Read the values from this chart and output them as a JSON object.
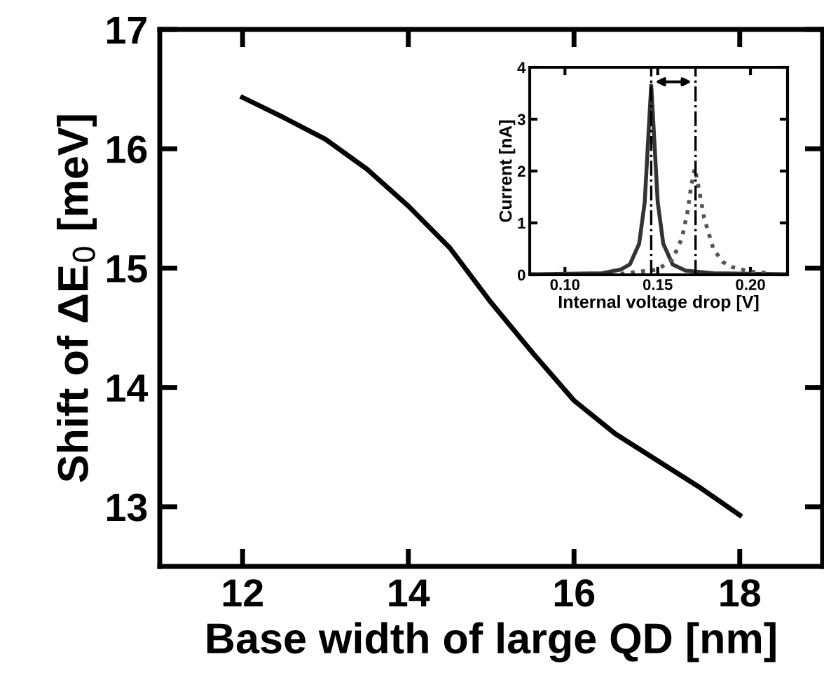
{
  "chart_data": [
    {
      "type": "line",
      "xlabel": "Base width of large QD [nm]",
      "ylabel": "Shift of ΔE$_{0}$ [meV]",
      "xlim": [
        11,
        19
      ],
      "xticks": [
        12,
        14,
        16,
        18
      ],
      "ylim": [
        12.5,
        17
      ],
      "yticks": [
        13,
        14,
        15,
        16,
        17
      ],
      "grid": false,
      "legend": false,
      "marker": "none",
      "series": [
        {
          "color": "#000000",
          "line_style": "solid",
          "x": [
            12,
            12.5,
            13,
            13.5,
            14,
            14.5,
            15,
            15.5,
            16,
            16.5,
            17,
            17.5,
            18
          ],
          "values": [
            16.43,
            16.26,
            16.08,
            15.83,
            15.52,
            15.17,
            14.71,
            14.29,
            13.89,
            13.61,
            13.39,
            13.17,
            12.93
          ]
        }
      ]
    },
    {
      "type": "line",
      "xlabel": "Internal voltage drop [V]",
      "ylabel": "Current [nA]",
      "xlim": [
        0.081,
        0.22
      ],
      "xticks": [
        {
          "value": 0.1,
          "label": "0.10"
        },
        {
          "value": 0.15,
          "label": "0.15"
        },
        {
          "value": 0.2,
          "label": "0.20"
        }
      ],
      "ylim": [
        0,
        4
      ],
      "yticks": [
        0,
        1,
        2,
        3,
        4
      ],
      "grid": false,
      "legend": false,
      "marker": "none",
      "series": [
        {
          "color": "#333333",
          "line_style": "solid",
          "x": [
            0.081,
            0.12,
            0.13,
            0.135,
            0.14,
            0.143,
            0.145,
            0.1465,
            0.148,
            0.15,
            0.153,
            0.158,
            0.165,
            0.18,
            0.22
          ],
          "values": [
            0.01,
            0.03,
            0.1,
            0.2,
            0.6,
            1.4,
            2.7,
            3.65,
            2.7,
            1.4,
            0.6,
            0.2,
            0.08,
            0.03,
            0.01
          ]
        },
        {
          "color": "#555555",
          "line_style": "dotted",
          "x": [
            0.13,
            0.15,
            0.158,
            0.163,
            0.166,
            0.168,
            0.17,
            0.172,
            0.175,
            0.18,
            0.185,
            0.19,
            0.2,
            0.21
          ],
          "values": [
            0.02,
            0.1,
            0.3,
            0.7,
            1.2,
            1.7,
            2.05,
            1.7,
            1.1,
            0.5,
            0.25,
            0.15,
            0.06,
            0.03
          ]
        }
      ],
      "ref_lines": [
        {
          "axis": "x",
          "value": 0.1465,
          "color": "#000000",
          "line_style": "dashdot"
        },
        {
          "axis": "x",
          "value": 0.1704,
          "color": "#000000",
          "line_style": "dashdot"
        }
      ]
    }
  ]
}
